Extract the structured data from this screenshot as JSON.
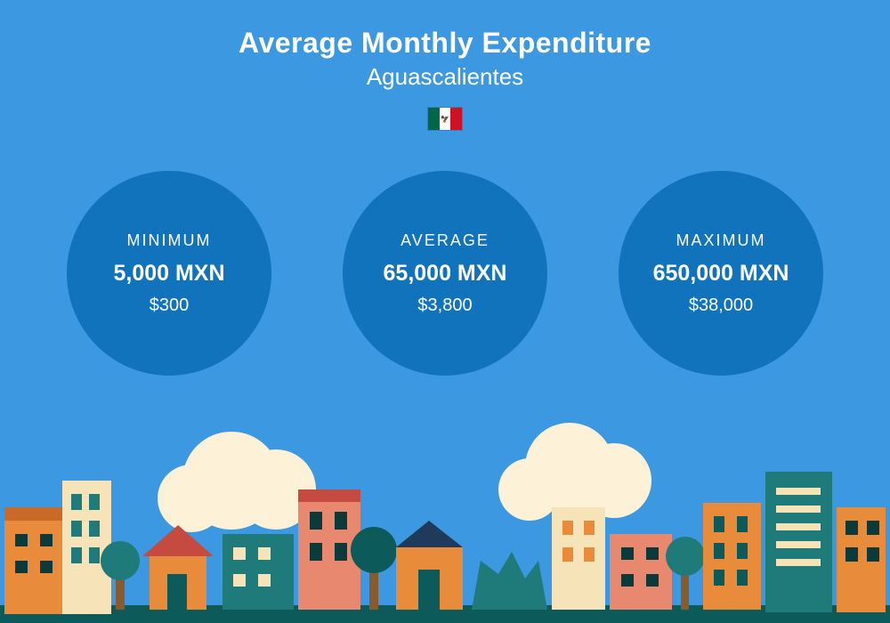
{
  "background_color": "#3c98e0",
  "title": "Average Monthly Expenditure",
  "subtitle": "Aguascalientes",
  "flag": {
    "name": "mexico-flag-icon",
    "stripes": [
      "#006847",
      "#ffffff",
      "#ce1126"
    ],
    "emblem": "🦅"
  },
  "circles": {
    "color": "#1273bd",
    "label_fontsize": 18,
    "mxn_fontsize": 25,
    "usd_fontsize": 20,
    "diameter": 230,
    "gap": 80,
    "items": [
      {
        "label": "MINIMUM",
        "mxn": "5,000 MXN",
        "usd": "$300"
      },
      {
        "label": "AVERAGE",
        "mxn": "65,000 MXN",
        "usd": "$3,800"
      },
      {
        "label": "MAXIMUM",
        "mxn": "650,000 MXN",
        "usd": "$38,000"
      }
    ]
  },
  "cityscape": {
    "ground_color": "#0d5a5a",
    "cloud_color": "#fdf1d8",
    "palette": {
      "orange": "#e88b3a",
      "dark_orange": "#c96a28",
      "teal": "#1f7a7a",
      "dark_teal": "#0d5a5a",
      "cream": "#f6e3b8",
      "salmon": "#e8886e",
      "navy": "#1f3a5a",
      "brown": "#8a5a2b",
      "red": "#c54a3f",
      "window": "#0a3a3a"
    }
  }
}
